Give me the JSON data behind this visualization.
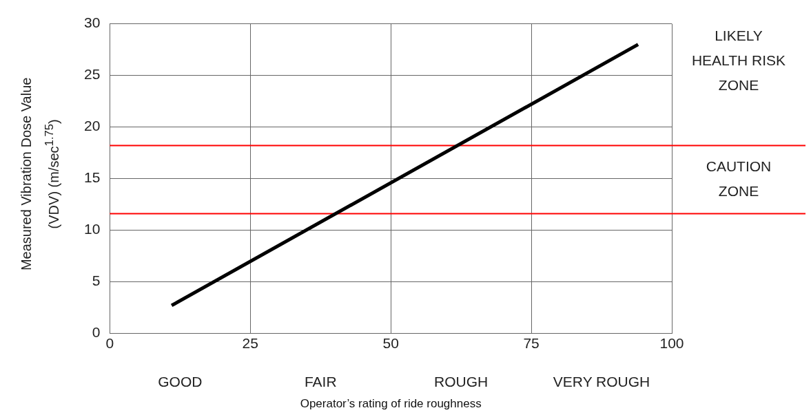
{
  "chart_data": {
    "type": "line",
    "xlabel": "Operator’s rating of ride roughness",
    "ylabel": "Measured Vibration Dose Value (VDV) (m/sec$^{1.75}$)",
    "series": [
      {
        "color": "#000000",
        "x": [
          11,
          94
        ],
        "values": [
          2.7,
          28
        ]
      }
    ],
    "xlim": [
      0,
      100
    ],
    "xticks": [
      0,
      25,
      50,
      75,
      100
    ],
    "ylim": [
      0,
      30
    ],
    "yticks": [
      0,
      5,
      10,
      15,
      20,
      25,
      30
    ],
    "grid": true,
    "legend": false,
    "marker": "none",
    "line_style": "solid",
    "ref_lines": [
      {
        "axis": "y",
        "value": 18.2,
        "color": "#ff0000"
      },
      {
        "axis": "y",
        "value": 11.6,
        "color": "#ff0000"
      }
    ],
    "annotations": [
      "LIKELY HEALTH RISK ZONE",
      "CAUTION ZONE",
      "GOOD",
      "FAIR",
      "ROUGH",
      "VERY ROUGH"
    ]
  }
}
